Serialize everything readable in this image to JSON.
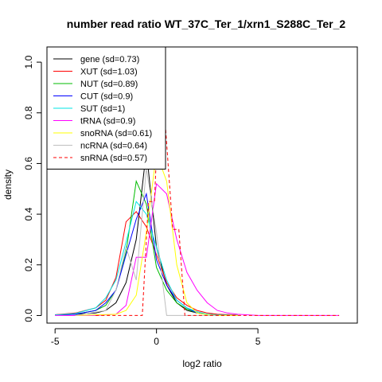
{
  "chart_data": {
    "type": "line",
    "title": "number read ratio WT_37C_Ter_1/xrn1_S288C_Ter_2",
    "xlabel": "log2 ratio",
    "ylabel": "density",
    "xlim": [
      -5.4,
      9.9
    ],
    "ylim": [
      -0.03,
      1.06
    ],
    "xticks": [
      -5,
      0,
      5
    ],
    "yticks": [
      0.0,
      0.2,
      0.4,
      0.6,
      0.8,
      1.0
    ],
    "xtick_labels": [
      "-5",
      "0",
      "5"
    ],
    "ytick_labels": [
      "0.0",
      "0.2",
      "0.4",
      "0.6",
      "0.8",
      "1.0"
    ],
    "legend_position": "top-left",
    "grid": false,
    "series": [
      {
        "name": "gene (sd=0.73)",
        "color": "#000000",
        "dash": "solid",
        "x": [
          -5,
          -4,
          -3,
          -2.5,
          -2,
          -1.5,
          -1,
          -0.5,
          0,
          0.5,
          1,
          1.5,
          2,
          2.5,
          3,
          4
        ],
        "y": [
          0.003,
          0.005,
          0.01,
          0.02,
          0.05,
          0.13,
          0.3,
          0.65,
          0.27,
          0.12,
          0.05,
          0.02,
          0.01,
          0.005,
          0.002,
          0.001
        ]
      },
      {
        "name": "XUT (sd=1.03)",
        "color": "#ff0000",
        "dash": "solid",
        "x": [
          -5,
          -4,
          -3,
          -2.5,
          -2,
          -1.5,
          -1,
          -0.5,
          0,
          0.5,
          1,
          1.5,
          2,
          2.5,
          3,
          4
        ],
        "y": [
          0.003,
          0.01,
          0.03,
          0.06,
          0.15,
          0.37,
          0.41,
          0.35,
          0.24,
          0.13,
          0.07,
          0.04,
          0.02,
          0.01,
          0.005,
          0.002
        ]
      },
      {
        "name": "NUT (sd=0.89)",
        "color": "#00bb00",
        "dash": "solid",
        "x": [
          -5,
          -4,
          -3,
          -2.5,
          -2,
          -1.5,
          -1,
          -0.5,
          0,
          0.5,
          1,
          1.5,
          2,
          2.5,
          3,
          4
        ],
        "y": [
          0.002,
          0.005,
          0.02,
          0.04,
          0.1,
          0.25,
          0.53,
          0.44,
          0.19,
          0.1,
          0.05,
          0.025,
          0.01,
          0.005,
          0.002,
          0.001
        ]
      },
      {
        "name": "CUT (sd=0.9)",
        "color": "#0000ff",
        "dash": "solid",
        "x": [
          -5,
          -4,
          -3,
          -2.5,
          -2,
          -1.5,
          -1,
          -0.5,
          0,
          0.5,
          1,
          1.5,
          2,
          2.5,
          3,
          4
        ],
        "y": [
          0.002,
          0.005,
          0.02,
          0.05,
          0.1,
          0.24,
          0.38,
          0.48,
          0.22,
          0.12,
          0.06,
          0.03,
          0.01,
          0.005,
          0.002,
          0.001
        ]
      },
      {
        "name": "SUT (sd=1)",
        "color": "#00e5e5",
        "dash": "solid",
        "x": [
          -5,
          -4,
          -3,
          -2.5,
          -2,
          -1.5,
          -1,
          -0.5,
          0,
          0.5,
          1,
          1.5,
          2,
          2.5,
          3,
          4
        ],
        "y": [
          0.002,
          0.008,
          0.03,
          0.07,
          0.14,
          0.29,
          0.45,
          0.4,
          0.27,
          0.14,
          0.06,
          0.03,
          0.015,
          0.005,
          0.002,
          0.001
        ]
      },
      {
        "name": "tRNA (sd=0.9)",
        "color": "#ff00ff",
        "dash": "solid",
        "x": [
          -5,
          -3,
          -2,
          -1.5,
          -1,
          -0.5,
          0,
          0.5,
          1,
          1.5,
          2,
          2.5,
          3,
          3.5,
          4,
          5,
          9
        ],
        "y": [
          0,
          0,
          0.005,
          0.04,
          0.23,
          0.23,
          0.52,
          0.48,
          0.3,
          0.17,
          0.1,
          0.05,
          0.02,
          0.01,
          0.005,
          0,
          0
        ]
      },
      {
        "name": "snoRNA (sd=0.61)",
        "color": "#ffff00",
        "dash": "solid",
        "x": [
          -4,
          -2,
          -1.5,
          -1,
          -0.5,
          0,
          0.5,
          1,
          1.5,
          2,
          2.5,
          3,
          4
        ],
        "y": [
          0,
          0.005,
          0.02,
          0.08,
          0.33,
          0.64,
          0.53,
          0.2,
          0.05,
          0.01,
          0.003,
          0,
          0
        ]
      },
      {
        "name": "ncRNA (sd=0.64)",
        "color": "#bebebe",
        "dash": "solid",
        "x": [
          -4,
          -2.5,
          -2,
          -1.5,
          -1,
          -0.5,
          0,
          0.5,
          1,
          1.5,
          2,
          3
        ],
        "y": [
          0,
          0.02,
          0.1,
          0.27,
          0.14,
          0.58,
          0.33,
          0.0,
          0.0,
          0.0,
          0.0,
          0
        ]
      },
      {
        "name": "snRNA (sd=0.57)",
        "color": "#ff0000",
        "dash": "dashed",
        "x": [
          -3,
          -1,
          -0.7,
          -0.4,
          -0.1,
          0.2,
          0.5,
          0.8,
          1.1,
          1.4,
          1.7,
          2.0,
          9
        ],
        "y": [
          0,
          0,
          0.0,
          0.45,
          0.45,
          1.02,
          0.68,
          0.34,
          0.34,
          0.0,
          0.0,
          0.0,
          0
        ]
      }
    ]
  }
}
